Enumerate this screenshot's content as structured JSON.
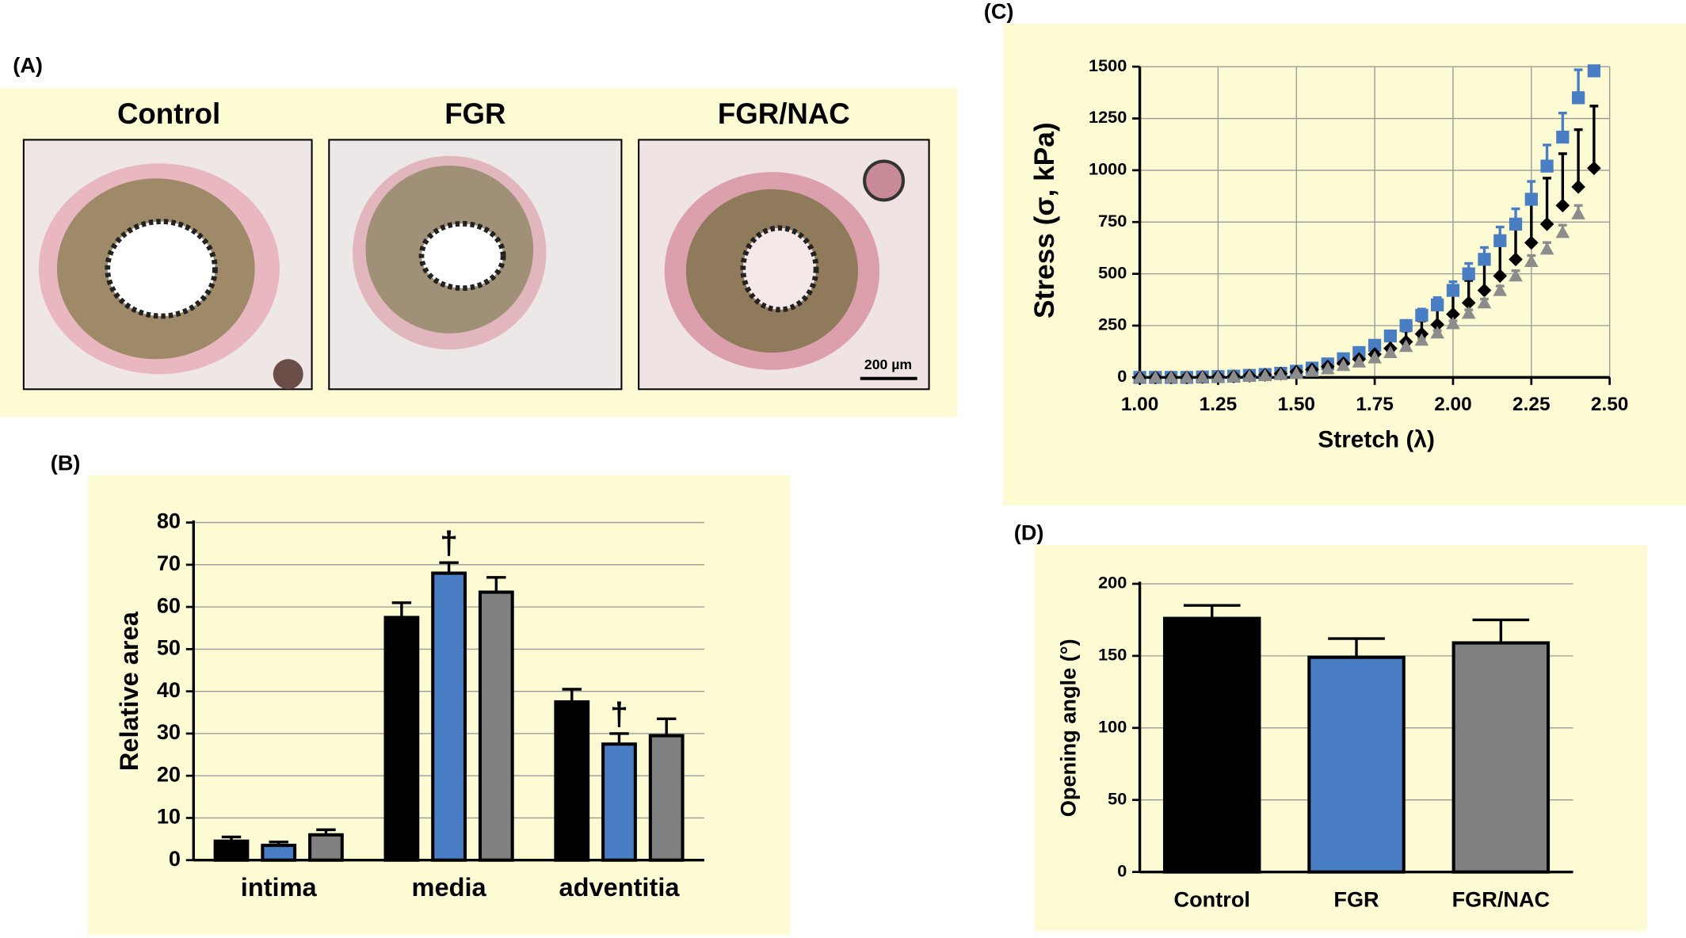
{
  "panel_a": {
    "label": "(A)",
    "titles": [
      "Control",
      "FGR",
      "FGR/NAC"
    ],
    "scale_bar": "200 µm"
  },
  "chart_data": [
    {
      "type": "bar",
      "label": "(B)",
      "ylabel": "Relative area",
      "categories": [
        "intima",
        "media",
        "adventitia"
      ],
      "series": [
        {
          "color": "#000000",
          "values": [
            4.5,
            57.5,
            37.5
          ],
          "errors": [
            1,
            3.5,
            3
          ],
          "annotations": [
            null,
            null,
            null
          ]
        },
        {
          "color": "#4a7ec4",
          "values": [
            3.5,
            68,
            27.5
          ],
          "errors": [
            0.8,
            2.5,
            2.5
          ],
          "annotations": [
            null,
            "†",
            "†"
          ]
        },
        {
          "color": "#808080",
          "values": [
            6,
            63.5,
            29.5
          ],
          "errors": [
            1.2,
            3.5,
            4
          ],
          "annotations": [
            null,
            null,
            null
          ]
        }
      ],
      "ylim": [
        0,
        80
      ],
      "yticks": [
        0,
        10,
        20,
        30,
        40,
        50,
        60,
        70,
        80
      ],
      "grid": true
    },
    {
      "type": "scatter",
      "label": "(C)",
      "xlabel": "Stretch (λ)",
      "ylabel": "Stress (σ, kPa)",
      "x": [
        1.0,
        1.05,
        1.1,
        1.15,
        1.2,
        1.25,
        1.3,
        1.35,
        1.4,
        1.45,
        1.5,
        1.55,
        1.6,
        1.65,
        1.7,
        1.75,
        1.8,
        1.85,
        1.9,
        1.95,
        2.0,
        2.05,
        2.1,
        2.15,
        2.2,
        2.25,
        2.3,
        2.35,
        2.4,
        2.45
      ],
      "series": [
        {
          "color": "#4a7ec4",
          "marker": "square",
          "values": [
            0,
            0,
            0,
            0,
            2,
            4,
            6,
            10,
            14,
            20,
            30,
            45,
            65,
            90,
            120,
            155,
            200,
            250,
            300,
            350,
            420,
            500,
            570,
            660,
            740,
            860,
            1020,
            1160,
            1350,
            1480
          ],
          "errors": [
            0,
            0,
            0,
            0,
            0,
            1,
            1,
            1,
            2,
            2,
            3,
            5,
            7,
            9,
            12,
            16,
            20,
            25,
            30,
            35,
            42,
            50,
            57,
            66,
            74,
            86,
            102,
            116,
            135,
            0
          ]
        },
        {
          "color": "#000000",
          "marker": "diamond",
          "values": [
            0,
            0,
            0,
            0,
            2,
            3,
            5,
            8,
            12,
            18,
            27,
            38,
            52,
            68,
            88,
            112,
            140,
            172,
            210,
            255,
            305,
            360,
            420,
            490,
            570,
            650,
            740,
            830,
            920,
            1010
          ],
          "errors": [
            0,
            0,
            0,
            0,
            1,
            1,
            2,
            3,
            4,
            6,
            8,
            11,
            15,
            20,
            26,
            34,
            42,
            52,
            63,
            77,
            92,
            108,
            126,
            147,
            171,
            195,
            222,
            250,
            276,
            300
          ]
        },
        {
          "color": "#8c8c8c",
          "marker": "triangle",
          "values": [
            0,
            0,
            0,
            0,
            1,
            2,
            4,
            6,
            9,
            14,
            20,
            30,
            42,
            58,
            75,
            95,
            120,
            150,
            180,
            215,
            260,
            310,
            360,
            420,
            490,
            560,
            620,
            700,
            790,
            null
          ],
          "errors": [
            0,
            0,
            0,
            0,
            0,
            0,
            0,
            0,
            0,
            1,
            1,
            2,
            2,
            3,
            4,
            5,
            6,
            8,
            9,
            11,
            13,
            16,
            18,
            21,
            25,
            28,
            31,
            35,
            40,
            null
          ]
        }
      ],
      "xlim": [
        1,
        2.5
      ],
      "xticks": [
        {
          "value": 1,
          "label": "1.00"
        },
        {
          "value": 1.25,
          "label": "1.25"
        },
        {
          "value": 1.5,
          "label": "1.50"
        },
        {
          "value": 1.75,
          "label": "1.75"
        },
        {
          "value": 2,
          "label": "2.00"
        },
        {
          "value": 2.25,
          "label": "2.25"
        },
        {
          "value": 2.5,
          "label": "2.50"
        }
      ],
      "ylim": [
        0,
        1500
      ],
      "yticks": [
        0,
        250,
        500,
        750,
        1000,
        1250,
        1500
      ],
      "grid": true
    },
    {
      "type": "bar",
      "label": "(D)",
      "ylabel": "Opening angle (°)",
      "categories": [
        "Control",
        "FGR",
        "FGR/NAC"
      ],
      "values": [
        176,
        149,
        159
      ],
      "errors": [
        9,
        13,
        16
      ],
      "colors": [
        "#000000",
        "#4a7ec4",
        "#808080"
      ],
      "ylim": [
        0,
        200
      ],
      "yticks": [
        0,
        50,
        100,
        150,
        200
      ],
      "grid": true
    }
  ]
}
